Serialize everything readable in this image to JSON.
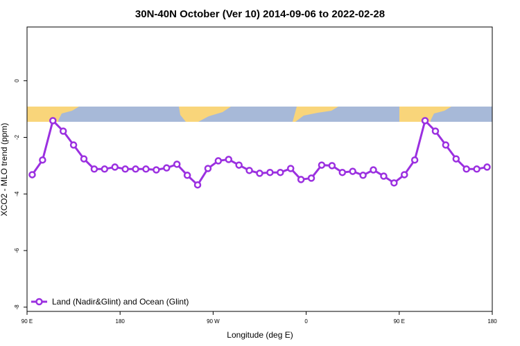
{
  "chart_data": {
    "type": "line",
    "title": "30N-40N October (Ver 10)   2014-09-06 to 2022-02-28",
    "x_label": "Longitude (deg E)",
    "y_label": "XCO2 - MLO trend (ppm)",
    "x": [
      95,
      105,
      115,
      125,
      135,
      145,
      155,
      165,
      175,
      185,
      195,
      205,
      215,
      225,
      235,
      245,
      255,
      265,
      275,
      285,
      295,
      305,
      315,
      325,
      335,
      345,
      355,
      365,
      375,
      385,
      395,
      405,
      415,
      425,
      435,
      445,
      455,
      465,
      475,
      485,
      495,
      505,
      515,
      525,
      535
    ],
    "series": [
      {
        "name": "Land (Nadir&Glint) and Ocean (Glint)",
        "color": "#9b30e0",
        "values": [
          -3.32,
          -2.8,
          -1.41,
          -1.78,
          -2.27,
          -2.76,
          -3.12,
          -3.12,
          -3.05,
          -3.12,
          -3.12,
          -3.12,
          -3.15,
          -3.08,
          -2.95,
          -3.34,
          -3.68,
          -3.1,
          -2.83,
          -2.78,
          -2.98,
          -3.17,
          -3.27,
          -3.24,
          -3.24,
          -3.1,
          -3.49,
          -3.44,
          -2.98,
          -3.0,
          -3.24,
          -3.2,
          -3.34,
          -3.15,
          -3.37,
          -3.61,
          -3.32,
          -2.8,
          -1.41,
          -1.78,
          -2.27,
          -2.76,
          -3.12,
          -3.12,
          -3.05
        ]
      }
    ],
    "xlim": [
      90,
      540
    ],
    "xticks": [
      {
        "value": 90,
        "label": "90 E"
      },
      180,
      {
        "value": 270,
        "label": "90 W"
      },
      {
        "value": 360,
        "label": "0"
      },
      {
        "value": 450,
        "label": "90 E"
      },
      {
        "value": 540,
        "label": "180"
      }
    ],
    "ylim": [
      -8.15,
      1.9
    ],
    "yticks": [
      0,
      -2,
      -4,
      -6,
      -8
    ],
    "legend": "bottom-left"
  }
}
